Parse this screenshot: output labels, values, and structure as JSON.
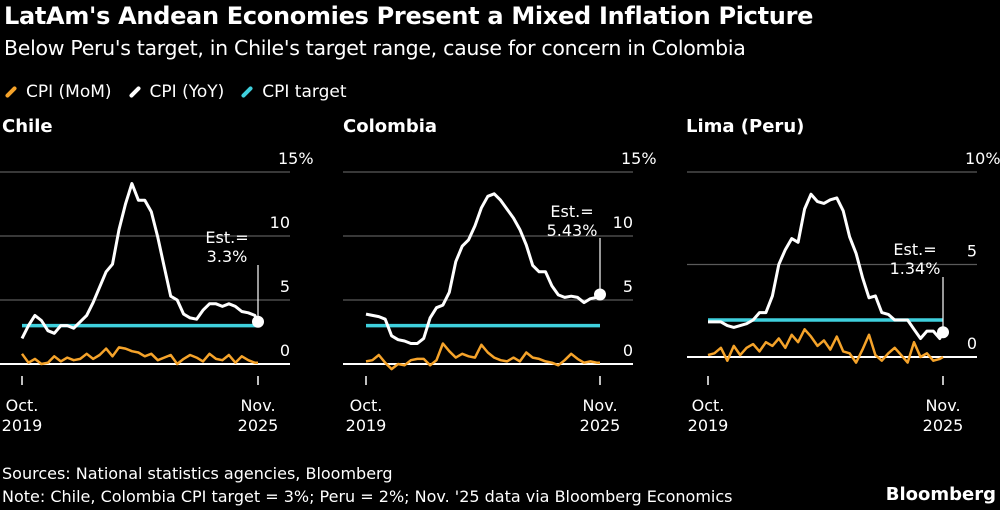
{
  "header": {
    "title": "LatAm's Andean Economies Present a Mixed Inflation Picture",
    "subtitle": "Below Peru's target, in Chile's target range, cause for concern in Colombia"
  },
  "legend": [
    {
      "label": "CPI (MoM)",
      "color": "#f5a32a"
    },
    {
      "label": "CPI (YoY)",
      "color": "#ffffff"
    },
    {
      "label": "CPI target",
      "color": "#3fd0dd"
    }
  ],
  "footer": {
    "sources": "Sources: National statistics agencies, Bloomberg",
    "note": "Note: Chile, Colombia CPI target = 3%; Peru = 2%; Nov. '25 data via Bloomberg Economics",
    "logo": "Bloomberg"
  },
  "chart_data": [
    {
      "type": "line",
      "title": "Chile",
      "ylim": [
        0,
        15
      ],
      "yticks": [
        "0",
        "5",
        "10",
        "15%"
      ],
      "ytick_values": [
        0,
        5,
        10,
        15
      ],
      "xticks": [
        [
          "Oct.",
          "2019"
        ],
        [
          "Nov.",
          "2025"
        ]
      ],
      "target": 3,
      "annotation": {
        "line1": "Est.=",
        "line2": "3.3%",
        "date": "2025-11",
        "value": 3.3
      },
      "yoy": [
        [
          "2019-10",
          2.0
        ],
        [
          "2019-12",
          3.0
        ],
        [
          "2020-02",
          3.8
        ],
        [
          "2020-04",
          3.4
        ],
        [
          "2020-06",
          2.6
        ],
        [
          "2020-08",
          2.4
        ],
        [
          "2020-10",
          3.0
        ],
        [
          "2020-12",
          3.0
        ],
        [
          "2021-02",
          2.8
        ],
        [
          "2021-04",
          3.3
        ],
        [
          "2021-06",
          3.8
        ],
        [
          "2021-08",
          4.8
        ],
        [
          "2021-10",
          6.0
        ],
        [
          "2021-12",
          7.2
        ],
        [
          "2022-02",
          7.8
        ],
        [
          "2022-04",
          10.5
        ],
        [
          "2022-06",
          12.5
        ],
        [
          "2022-08",
          14.1
        ],
        [
          "2022-10",
          12.8
        ],
        [
          "2022-12",
          12.8
        ],
        [
          "2023-02",
          11.9
        ],
        [
          "2023-04",
          9.9
        ],
        [
          "2023-06",
          7.6
        ],
        [
          "2023-08",
          5.3
        ],
        [
          "2023-10",
          5.0
        ],
        [
          "2023-12",
          3.9
        ],
        [
          "2024-02",
          3.6
        ],
        [
          "2024-04",
          3.5
        ],
        [
          "2024-06",
          4.2
        ],
        [
          "2024-08",
          4.7
        ],
        [
          "2024-10",
          4.7
        ],
        [
          "2024-12",
          4.5
        ],
        [
          "2025-02",
          4.7
        ],
        [
          "2025-04",
          4.5
        ],
        [
          "2025-06",
          4.1
        ],
        [
          "2025-08",
          4.0
        ],
        [
          "2025-10",
          3.8
        ],
        [
          "2025-11",
          3.3
        ]
      ],
      "mom": [
        [
          "2019-10",
          0.8
        ],
        [
          "2019-12",
          0.1
        ],
        [
          "2020-02",
          0.4
        ],
        [
          "2020-04",
          0.0
        ],
        [
          "2020-06",
          0.1
        ],
        [
          "2020-08",
          0.6
        ],
        [
          "2020-10",
          0.2
        ],
        [
          "2020-12",
          0.5
        ],
        [
          "2021-02",
          0.3
        ],
        [
          "2021-04",
          0.4
        ],
        [
          "2021-06",
          0.8
        ],
        [
          "2021-08",
          0.4
        ],
        [
          "2021-10",
          0.7
        ],
        [
          "2021-12",
          1.2
        ],
        [
          "2022-02",
          0.6
        ],
        [
          "2022-04",
          1.3
        ],
        [
          "2022-06",
          1.2
        ],
        [
          "2022-08",
          1.0
        ],
        [
          "2022-10",
          0.9
        ],
        [
          "2022-12",
          0.6
        ],
        [
          "2023-02",
          0.8
        ],
        [
          "2023-04",
          0.3
        ],
        [
          "2023-06",
          0.5
        ],
        [
          "2023-08",
          0.7
        ],
        [
          "2023-10",
          0.0
        ],
        [
          "2023-12",
          0.4
        ],
        [
          "2024-02",
          0.7
        ],
        [
          "2024-04",
          0.5
        ],
        [
          "2024-06",
          0.2
        ],
        [
          "2024-08",
          0.8
        ],
        [
          "2024-10",
          0.4
        ],
        [
          "2024-12",
          0.3
        ],
        [
          "2025-02",
          0.7
        ],
        [
          "2025-04",
          0.1
        ],
        [
          "2025-06",
          0.6
        ],
        [
          "2025-08",
          0.3
        ],
        [
          "2025-10",
          0.1
        ],
        [
          "2025-11",
          0.1
        ]
      ]
    },
    {
      "type": "line",
      "title": "Colombia",
      "ylim": [
        0,
        15
      ],
      "yticks": [
        "0",
        "5",
        "10",
        "15%"
      ],
      "ytick_values": [
        0,
        5,
        10,
        15
      ],
      "xticks": [
        [
          "Oct.",
          "2019"
        ],
        [
          "Nov.",
          "2025"
        ]
      ],
      "target": 3,
      "annotation": {
        "line1": "Est.=",
        "line2": "5.43%",
        "date": "2025-11",
        "value": 5.43
      },
      "yoy": [
        [
          "2019-10",
          3.9
        ],
        [
          "2019-12",
          3.8
        ],
        [
          "2020-02",
          3.7
        ],
        [
          "2020-04",
          3.5
        ],
        [
          "2020-06",
          2.2
        ],
        [
          "2020-08",
          1.9
        ],
        [
          "2020-10",
          1.8
        ],
        [
          "2020-12",
          1.6
        ],
        [
          "2021-02",
          1.6
        ],
        [
          "2021-04",
          2.0
        ],
        [
          "2021-06",
          3.6
        ],
        [
          "2021-08",
          4.4
        ],
        [
          "2021-10",
          4.6
        ],
        [
          "2021-12",
          5.6
        ],
        [
          "2022-02",
          8.0
        ],
        [
          "2022-04",
          9.2
        ],
        [
          "2022-06",
          9.7
        ],
        [
          "2022-08",
          10.8
        ],
        [
          "2022-10",
          12.2
        ],
        [
          "2022-12",
          13.1
        ],
        [
          "2023-02",
          13.3
        ],
        [
          "2023-04",
          12.8
        ],
        [
          "2023-06",
          12.1
        ],
        [
          "2023-08",
          11.4
        ],
        [
          "2023-10",
          10.5
        ],
        [
          "2023-12",
          9.3
        ],
        [
          "2024-02",
          7.7
        ],
        [
          "2024-04",
          7.2
        ],
        [
          "2024-06",
          7.2
        ],
        [
          "2024-08",
          6.1
        ],
        [
          "2024-10",
          5.4
        ],
        [
          "2024-12",
          5.2
        ],
        [
          "2025-02",
          5.3
        ],
        [
          "2025-04",
          5.2
        ],
        [
          "2025-06",
          4.8
        ],
        [
          "2025-08",
          5.1
        ],
        [
          "2025-10",
          5.2
        ],
        [
          "2025-11",
          5.43
        ]
      ],
      "mom": [
        [
          "2019-10",
          0.2
        ],
        [
          "2019-12",
          0.3
        ],
        [
          "2020-02",
          0.7
        ],
        [
          "2020-04",
          0.1
        ],
        [
          "2020-06",
          -0.4
        ],
        [
          "2020-08",
          0.0
        ],
        [
          "2020-10",
          -0.1
        ],
        [
          "2020-12",
          0.3
        ],
        [
          "2021-02",
          0.4
        ],
        [
          "2021-04",
          0.4
        ],
        [
          "2021-06",
          -0.1
        ],
        [
          "2021-08",
          0.3
        ],
        [
          "2021-10",
          1.6
        ],
        [
          "2021-12",
          1.0
        ],
        [
          "2022-02",
          0.5
        ],
        [
          "2022-04",
          0.8
        ],
        [
          "2022-06",
          0.6
        ],
        [
          "2022-08",
          0.5
        ],
        [
          "2022-10",
          1.5
        ],
        [
          "2022-12",
          0.9
        ],
        [
          "2023-02",
          0.5
        ],
        [
          "2023-04",
          0.3
        ],
        [
          "2023-06",
          0.2
        ],
        [
          "2023-08",
          0.5
        ],
        [
          "2023-10",
          0.2
        ],
        [
          "2023-12",
          0.9
        ],
        [
          "2024-02",
          0.5
        ],
        [
          "2024-04",
          0.4
        ],
        [
          "2024-06",
          0.2
        ],
        [
          "2024-08",
          0.1
        ],
        [
          "2024-10",
          -0.1
        ],
        [
          "2024-12",
          0.3
        ],
        [
          "2025-02",
          0.8
        ],
        [
          "2025-04",
          0.4
        ],
        [
          "2025-06",
          0.1
        ],
        [
          "2025-08",
          0.2
        ],
        [
          "2025-10",
          0.1
        ],
        [
          "2025-11",
          0.1
        ]
      ]
    },
    {
      "type": "line",
      "title": "Lima (Peru)",
      "ylim": [
        0,
        10
      ],
      "yticks": [
        "0",
        "5",
        "10%"
      ],
      "ytick_values": [
        0,
        5,
        10
      ],
      "xticks": [
        [
          "Oct.",
          "2019"
        ],
        [
          "Nov.",
          "2025"
        ]
      ],
      "target": 2,
      "annotation": {
        "line1": "Est.=",
        "line2": "1.34%",
        "date": "2025-11",
        "value": 1.34
      },
      "yoy": [
        [
          "2019-10",
          1.9
        ],
        [
          "2019-12",
          1.9
        ],
        [
          "2020-02",
          1.9
        ],
        [
          "2020-04",
          1.7
        ],
        [
          "2020-06",
          1.6
        ],
        [
          "2020-08",
          1.7
        ],
        [
          "2020-10",
          1.8
        ],
        [
          "2020-12",
          2.0
        ],
        [
          "2021-02",
          2.4
        ],
        [
          "2021-04",
          2.4
        ],
        [
          "2021-06",
          3.3
        ],
        [
          "2021-08",
          5.0
        ],
        [
          "2021-10",
          5.8
        ],
        [
          "2021-12",
          6.4
        ],
        [
          "2022-02",
          6.2
        ],
        [
          "2022-04",
          8.0
        ],
        [
          "2022-06",
          8.8
        ],
        [
          "2022-08",
          8.4
        ],
        [
          "2022-10",
          8.3
        ],
        [
          "2022-12",
          8.5
        ],
        [
          "2023-02",
          8.6
        ],
        [
          "2023-04",
          7.9
        ],
        [
          "2023-06",
          6.5
        ],
        [
          "2023-08",
          5.6
        ],
        [
          "2023-10",
          4.3
        ],
        [
          "2023-12",
          3.2
        ],
        [
          "2024-02",
          3.3
        ],
        [
          "2024-04",
          2.4
        ],
        [
          "2024-06",
          2.3
        ],
        [
          "2024-08",
          2.0
        ],
        [
          "2024-10",
          2.0
        ],
        [
          "2024-12",
          2.0
        ],
        [
          "2025-02",
          1.5
        ],
        [
          "2025-04",
          1.0
        ],
        [
          "2025-06",
          1.4
        ],
        [
          "2025-08",
          1.4
        ],
        [
          "2025-10",
          1.0
        ],
        [
          "2025-11",
          1.34
        ]
      ],
      "mom": [
        [
          "2019-10",
          0.1
        ],
        [
          "2019-12",
          0.2
        ],
        [
          "2020-02",
          0.5
        ],
        [
          "2020-04",
          -0.2
        ],
        [
          "2020-06",
          0.6
        ],
        [
          "2020-08",
          0.1
        ],
        [
          "2020-10",
          0.5
        ],
        [
          "2020-12",
          0.7
        ],
        [
          "2021-02",
          0.3
        ],
        [
          "2021-04",
          0.8
        ],
        [
          "2021-06",
          0.6
        ],
        [
          "2021-08",
          1.0
        ],
        [
          "2021-10",
          0.5
        ],
        [
          "2021-12",
          1.2
        ],
        [
          "2022-02",
          0.8
        ],
        [
          "2022-04",
          1.5
        ],
        [
          "2022-06",
          1.1
        ],
        [
          "2022-08",
          0.6
        ],
        [
          "2022-10",
          0.9
        ],
        [
          "2022-12",
          0.4
        ],
        [
          "2023-02",
          1.1
        ],
        [
          "2023-04",
          0.3
        ],
        [
          "2023-06",
          0.2
        ],
        [
          "2023-08",
          -0.3
        ],
        [
          "2023-10",
          0.4
        ],
        [
          "2023-12",
          1.2
        ],
        [
          "2024-02",
          0.1
        ],
        [
          "2024-04",
          -0.2
        ],
        [
          "2024-06",
          0.2
        ],
        [
          "2024-08",
          0.5
        ],
        [
          "2024-10",
          0.1
        ],
        [
          "2024-12",
          -0.3
        ],
        [
          "2025-02",
          0.8
        ],
        [
          "2025-04",
          0.0
        ],
        [
          "2025-06",
          0.2
        ],
        [
          "2025-08",
          -0.2
        ],
        [
          "2025-10",
          -0.1
        ],
        [
          "2025-11",
          0.0
        ]
      ]
    }
  ]
}
